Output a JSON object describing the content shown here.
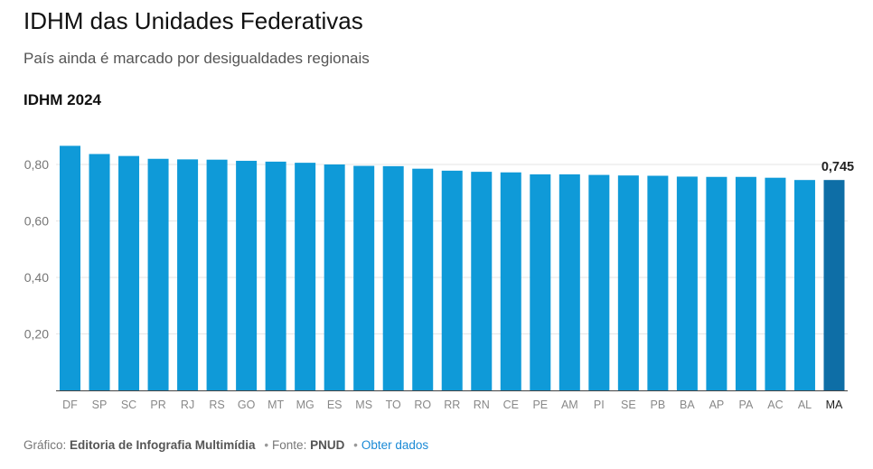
{
  "header": {
    "title": "IDHM das Unidades Federativas",
    "subtitle": "País ainda é marcado por desigualdades regionais",
    "chart_heading": "IDHM 2024"
  },
  "chart_data": {
    "type": "bar",
    "title": "IDHM das Unidades Federativas",
    "subtitle": "País ainda é marcado por desigualdades regionais",
    "ylabel": "",
    "xlabel": "",
    "categories": [
      "DF",
      "SP",
      "SC",
      "PR",
      "RJ",
      "RS",
      "GO",
      "MT",
      "MG",
      "ES",
      "MS",
      "TO",
      "RO",
      "RR",
      "RN",
      "CE",
      "PE",
      "AM",
      "PI",
      "SE",
      "PB",
      "BA",
      "AP",
      "PA",
      "AC",
      "AL",
      "MA"
    ],
    "values": [
      0.866,
      0.837,
      0.83,
      0.82,
      0.818,
      0.817,
      0.813,
      0.81,
      0.806,
      0.8,
      0.795,
      0.794,
      0.785,
      0.778,
      0.774,
      0.772,
      0.765,
      0.765,
      0.763,
      0.761,
      0.76,
      0.757,
      0.756,
      0.756,
      0.753,
      0.745,
      0.745
    ],
    "highlighted_category": "MA",
    "highlighted_label": "0,745",
    "yticks": [
      "0,20",
      "0,40",
      "0,60",
      "0,80"
    ],
    "ytick_values": [
      0.2,
      0.4,
      0.6,
      0.8
    ],
    "ylim": [
      0,
      0.9
    ],
    "grid": true,
    "colors": {
      "bar": "#0f9ad8",
      "highlight": "#0e6ea6"
    }
  },
  "footer": {
    "grafico_label": "Gráfico:",
    "grafico_value": "Editoria de Infografia Multimídia",
    "fonte_label": "Fonte:",
    "fonte_value": "PNUD",
    "link_label": "Obter dados"
  }
}
